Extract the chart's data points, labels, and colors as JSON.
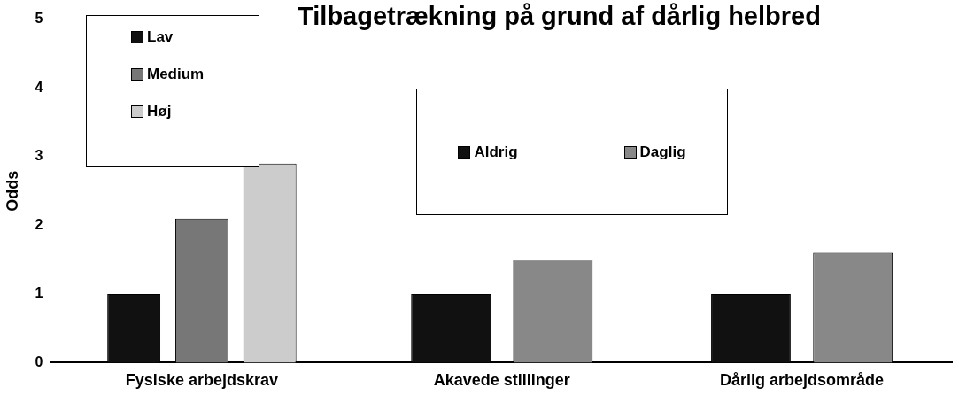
{
  "chart_data": {
    "type": "bar",
    "title": "Tilbagetrækning på grund af dårlig helbred",
    "ylabel": "Odds",
    "categories": [
      "Fysiske arbejdskrav",
      "Akavede stillinger",
      "Dårlig arbejdsområde"
    ],
    "series": [
      {
        "name": "Lav",
        "color": "#111111",
        "values": [
          1,
          null,
          null
        ]
      },
      {
        "name": "Medium",
        "color": "#777777",
        "values": [
          2.1,
          null,
          null
        ]
      },
      {
        "name": "Høj",
        "color": "#cccccc",
        "values": [
          2.9,
          null,
          null
        ]
      },
      {
        "name": "Aldrig",
        "color": "#111111",
        "values": [
          null,
          1,
          1
        ]
      },
      {
        "name": "Daglig",
        "color": "#888888",
        "values": [
          null,
          1.5,
          1.6
        ]
      }
    ],
    "ylim": [
      0,
      5
    ],
    "yticks": [
      0,
      1,
      2,
      3,
      4,
      5
    ],
    "grid": false,
    "legend": "top"
  }
}
